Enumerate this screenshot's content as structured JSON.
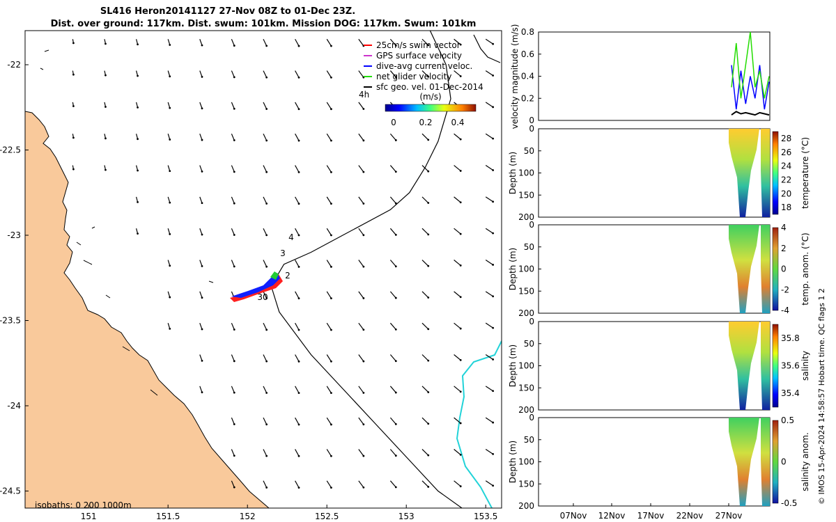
{
  "figure": {
    "title_line1": "SL416 Heron20141127 27-Nov 08Z to 01-Dec 23Z.",
    "title_line2": "Dist. over ground: 117km. Dist. swum: 101km. Mission DOG: 117km. Swum: 101km",
    "footer": "© IMOS 15-Apr-2024 14:58:57 Hobart time. QC flags 1  2",
    "isobaths_label": "isobaths: 0   200   1000m",
    "colors": {
      "land": "#f9c99b",
      "track": "#000000",
      "cyan_isobath": "#22d3d8",
      "swim": "#ff0000",
      "gps": "#cc33cc",
      "dive_avg": "#0000ff",
      "net": "#22dd00"
    }
  },
  "chart_data": [
    {
      "type": "map",
      "name": "map",
      "xlim": [
        150.6,
        153.6
      ],
      "ylim": [
        -24.6,
        -21.8
      ],
      "xticks": [
        "151",
        "151.5",
        "152",
        "152.5",
        "153",
        "153.5"
      ],
      "yticks": [
        "-22",
        "-22.5",
        "-23",
        "-23.5",
        "-24",
        "-24.5"
      ],
      "legend": {
        "placement": "top-right",
        "items": [
          {
            "label": "25cm/s swim vector",
            "color": "#ff0000"
          },
          {
            "label": "GPS surface velocity",
            "color": "#cc33cc"
          },
          {
            "label": "dive-avg current veloc.",
            "color": "#0000ff"
          },
          {
            "label": "net glider velocity",
            "color": "#22dd00"
          },
          {
            "label": "sfc geo. vel. 01-Dec-2014",
            "color": "#000000"
          }
        ],
        "note_label": "4h"
      },
      "colorbar": {
        "title": "(m/s)",
        "ticks": [
          "0",
          "0.2",
          "0.4"
        ],
        "range": [
          0,
          0.5
        ]
      },
      "day_labels": [
        "4",
        "3",
        "2",
        "30"
      ],
      "track": [
        [
          152.16,
          -23.28
        ],
        [
          152.23,
          -23.17
        ],
        [
          152.4,
          -23.1
        ],
        [
          152.6,
          -23.0
        ],
        [
          152.9,
          -22.85
        ],
        [
          153.02,
          -22.75
        ],
        [
          153.12,
          -22.6
        ],
        [
          153.2,
          -22.45
        ],
        [
          153.28,
          -22.2
        ],
        [
          153.25,
          -22.0
        ],
        [
          153.15,
          -21.8
        ]
      ],
      "track2": [
        [
          152.15,
          -23.3
        ],
        [
          152.2,
          -23.45
        ],
        [
          152.4,
          -23.7
        ],
        [
          152.6,
          -23.9
        ],
        [
          152.8,
          -24.1
        ],
        [
          153.0,
          -24.3
        ],
        [
          153.2,
          -24.5
        ],
        [
          153.35,
          -24.6
        ]
      ]
    },
    {
      "type": "line",
      "name": "velocity",
      "ylabel": "velocity magnitude (m/s)",
      "ylim": [
        0,
        0.8
      ],
      "yticks": [
        "0",
        "0.2",
        "0.4",
        "0.6",
        "0.8"
      ],
      "series": [
        {
          "values": [
            0.5,
            0.1,
            0.45,
            0.15,
            0.4,
            0.2,
            0.5,
            0.1,
            0.35
          ]
        },
        {
          "values": [
            0.3,
            0.7,
            0.2,
            0.5,
            0.8,
            0.3,
            0.45,
            0.2,
            0.4
          ]
        },
        {
          "values": [
            0.05,
            0.08,
            0.06,
            0.07,
            0.06,
            0.05,
            0.07,
            0.06,
            0.05
          ]
        }
      ]
    },
    {
      "type": "heatmap",
      "name": "temperature",
      "ylabel": "Depth (m)",
      "yticks": [
        "0",
        "50",
        "100",
        "150",
        "200"
      ],
      "ylim": [
        0,
        200
      ],
      "cbar_label": "temperature (°C)",
      "cbar_ticks": [
        "28",
        "26",
        "24",
        "22",
        "20",
        "18"
      ],
      "cbar_range": [
        17,
        29
      ]
    },
    {
      "type": "heatmap",
      "name": "temp-anom",
      "ylabel": "Depth (m)",
      "yticks": [
        "0",
        "50",
        "100",
        "150",
        "200"
      ],
      "ylim": [
        0,
        200
      ],
      "cbar_label": "temp. anom. (°C)",
      "cbar_ticks": [
        "4",
        "2",
        "0",
        "-2",
        "-4"
      ],
      "cbar_range": [
        -4,
        4
      ]
    },
    {
      "type": "heatmap",
      "name": "salinity",
      "ylabel": "Depth (m)",
      "yticks": [
        "0",
        "50",
        "100",
        "150",
        "200"
      ],
      "ylim": [
        0,
        200
      ],
      "cbar_label": "salinity",
      "cbar_ticks": [
        "35.8",
        "35.6",
        "35.4"
      ],
      "cbar_range": [
        35.3,
        35.9
      ]
    },
    {
      "type": "heatmap",
      "name": "salinity-anom",
      "ylabel": "Depth (m)",
      "yticks": [
        "0",
        "50",
        "100",
        "150",
        "200"
      ],
      "ylim": [
        0,
        200
      ],
      "cbar_label": "salinity anom.",
      "cbar_ticks": [
        "0.5",
        "0",
        "-0.5"
      ],
      "cbar_range": [
        -0.5,
        0.5
      ]
    }
  ],
  "time_axis": {
    "ticks": [
      "07Nov",
      "12Nov",
      "17Nov",
      "22Nov",
      "27Nov"
    ]
  }
}
